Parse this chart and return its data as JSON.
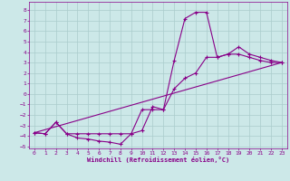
{
  "xlabel": "Windchill (Refroidissement éolien,°C)",
  "bg_color": "#cce8e8",
  "line_color": "#880088",
  "grid_color": "#aacccc",
  "xlim": [
    -0.5,
    23.5
  ],
  "ylim": [
    -5.2,
    8.8
  ],
  "xticks": [
    0,
    1,
    2,
    3,
    4,
    5,
    6,
    7,
    8,
    9,
    10,
    11,
    12,
    13,
    14,
    15,
    16,
    17,
    18,
    19,
    20,
    21,
    22,
    23
  ],
  "yticks": [
    -5,
    -4,
    -3,
    -2,
    -1,
    0,
    1,
    2,
    3,
    4,
    5,
    6,
    7,
    8
  ],
  "line1_x": [
    0,
    1,
    2,
    3,
    4,
    5,
    6,
    7,
    8,
    9,
    10,
    11,
    12,
    13,
    14,
    15,
    16,
    17,
    18,
    19,
    20,
    21,
    22,
    23
  ],
  "line1_y": [
    -3.7,
    -3.8,
    -2.7,
    -3.8,
    -4.2,
    -4.3,
    -4.5,
    -4.6,
    -4.8,
    -3.8,
    -3.5,
    -1.2,
    -1.5,
    3.2,
    7.2,
    7.8,
    7.8,
    3.5,
    3.8,
    4.5,
    3.8,
    3.5,
    3.2,
    3.0
  ],
  "line2_x": [
    0,
    1,
    2,
    3,
    4,
    5,
    6,
    7,
    8,
    9,
    10,
    11,
    12,
    13,
    14,
    15,
    16,
    17,
    18,
    19,
    20,
    21,
    22,
    23
  ],
  "line2_y": [
    -3.7,
    -3.8,
    -2.7,
    -3.8,
    -3.8,
    -3.8,
    -3.8,
    -3.8,
    -3.8,
    -3.8,
    -1.5,
    -1.5,
    -1.5,
    0.5,
    1.5,
    2.0,
    3.5,
    3.5,
    3.8,
    3.8,
    3.5,
    3.2,
    3.0,
    3.0
  ],
  "line3_x": [
    0,
    23
  ],
  "line3_y": [
    -3.7,
    3.0
  ]
}
